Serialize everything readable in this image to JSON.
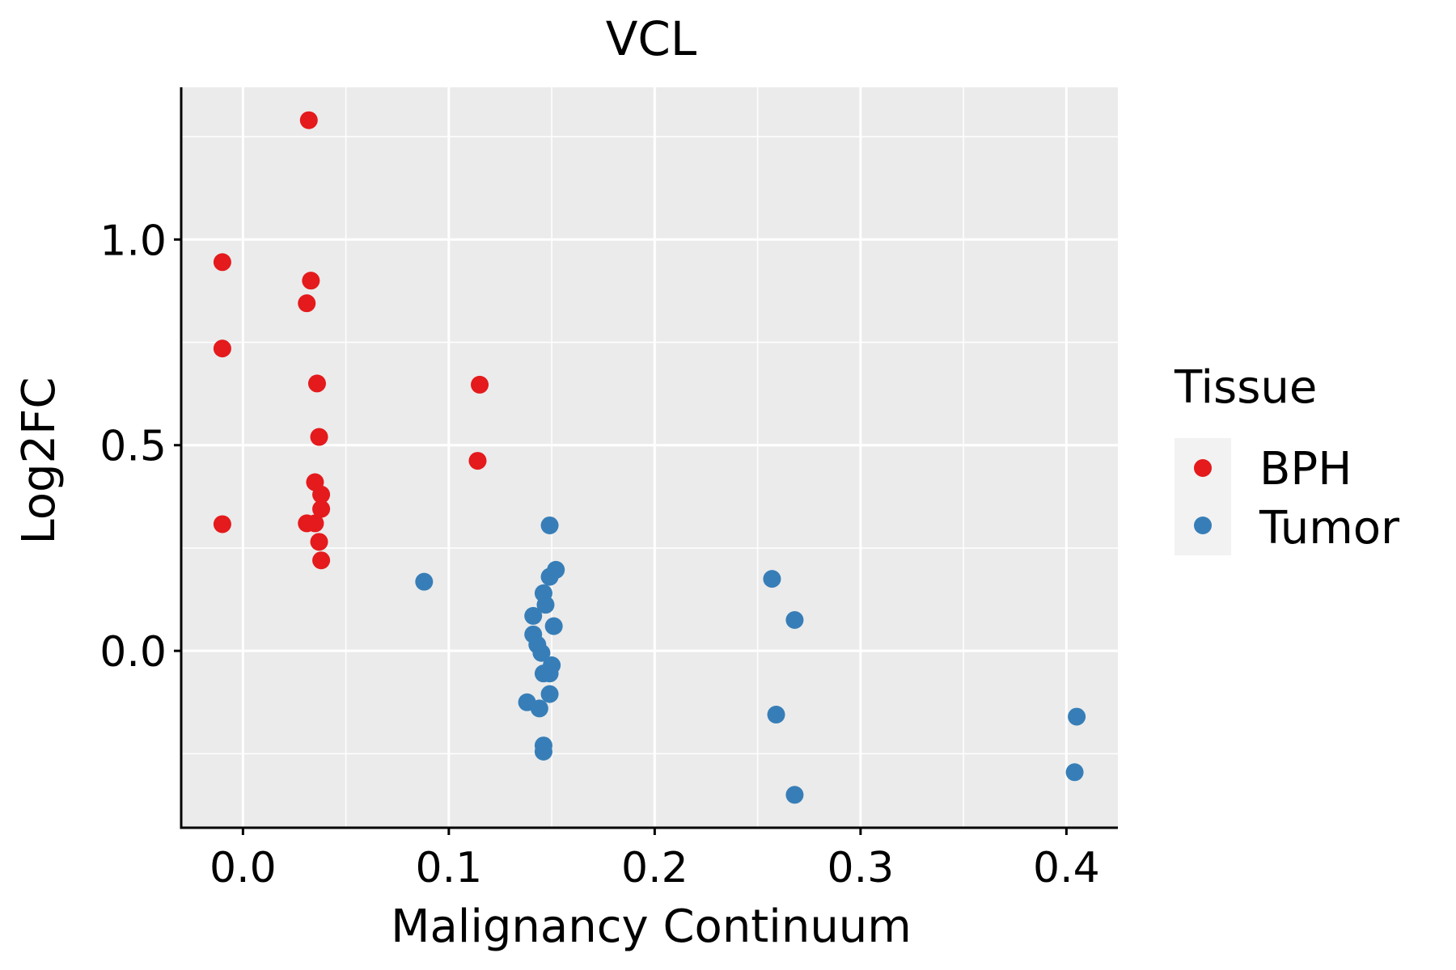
{
  "chart_data": {
    "type": "scatter",
    "title": "VCL",
    "xlabel": "Malignancy Continuum",
    "ylabel": "Log2FC",
    "xlim": [
      -0.03,
      0.425
    ],
    "ylim": [
      -0.43,
      1.37
    ],
    "x_ticks": [
      {
        "value": 0.0,
        "label": "0.0"
      },
      {
        "value": 0.1,
        "label": "0.1"
      },
      {
        "value": 0.2,
        "label": "0.2"
      },
      {
        "value": 0.3,
        "label": "0.3"
      },
      {
        "value": 0.4,
        "label": "0.4"
      }
    ],
    "y_ticks": [
      {
        "value": 0.0,
        "label": "0.0"
      },
      {
        "value": 0.5,
        "label": "0.5"
      },
      {
        "value": 1.0,
        "label": "1.0"
      }
    ],
    "x_minor": [
      0.05,
      0.15,
      0.25,
      0.35
    ],
    "y_minor": [
      -0.25,
      0.25,
      0.75,
      1.25
    ],
    "grid": true,
    "legend_position": "right",
    "legend_title": "Tissue",
    "colors": {
      "panel": "#EBEBEB",
      "grid": "#FFFFFF",
      "axis": "#000000",
      "legend_key_bg": "#F2F2F2"
    },
    "series": [
      {
        "name": "BPH",
        "color": "#E41A1C",
        "points": [
          {
            "x": -0.01,
            "y": 0.945
          },
          {
            "x": -0.01,
            "y": 0.735
          },
          {
            "x": -0.01,
            "y": 0.308
          },
          {
            "x": 0.032,
            "y": 1.29
          },
          {
            "x": 0.033,
            "y": 0.9
          },
          {
            "x": 0.031,
            "y": 0.845
          },
          {
            "x": 0.036,
            "y": 0.65
          },
          {
            "x": 0.037,
            "y": 0.52
          },
          {
            "x": 0.035,
            "y": 0.41
          },
          {
            "x": 0.038,
            "y": 0.38
          },
          {
            "x": 0.038,
            "y": 0.345
          },
          {
            "x": 0.031,
            "y": 0.31
          },
          {
            "x": 0.035,
            "y": 0.31
          },
          {
            "x": 0.037,
            "y": 0.265
          },
          {
            "x": 0.038,
            "y": 0.22
          },
          {
            "x": 0.115,
            "y": 0.647
          },
          {
            "x": 0.114,
            "y": 0.462
          }
        ]
      },
      {
        "name": "Tumor",
        "color": "#377EB8",
        "points": [
          {
            "x": 0.088,
            "y": 0.168
          },
          {
            "x": 0.149,
            "y": 0.305
          },
          {
            "x": 0.152,
            "y": 0.197
          },
          {
            "x": 0.149,
            "y": 0.18
          },
          {
            "x": 0.146,
            "y": 0.14
          },
          {
            "x": 0.147,
            "y": 0.112
          },
          {
            "x": 0.141,
            "y": 0.085
          },
          {
            "x": 0.151,
            "y": 0.06
          },
          {
            "x": 0.141,
            "y": 0.04
          },
          {
            "x": 0.143,
            "y": 0.015
          },
          {
            "x": 0.145,
            "y": -0.005
          },
          {
            "x": 0.15,
            "y": -0.035
          },
          {
            "x": 0.146,
            "y": -0.055
          },
          {
            "x": 0.149,
            "y": -0.055
          },
          {
            "x": 0.149,
            "y": -0.105
          },
          {
            "x": 0.138,
            "y": -0.125
          },
          {
            "x": 0.144,
            "y": -0.14
          },
          {
            "x": 0.146,
            "y": -0.23
          },
          {
            "x": 0.146,
            "y": -0.245
          },
          {
            "x": 0.257,
            "y": 0.175
          },
          {
            "x": 0.268,
            "y": 0.075
          },
          {
            "x": 0.259,
            "y": -0.155
          },
          {
            "x": 0.268,
            "y": -0.35
          },
          {
            "x": 0.405,
            "y": -0.16
          },
          {
            "x": 0.404,
            "y": -0.295
          }
        ]
      }
    ]
  }
}
